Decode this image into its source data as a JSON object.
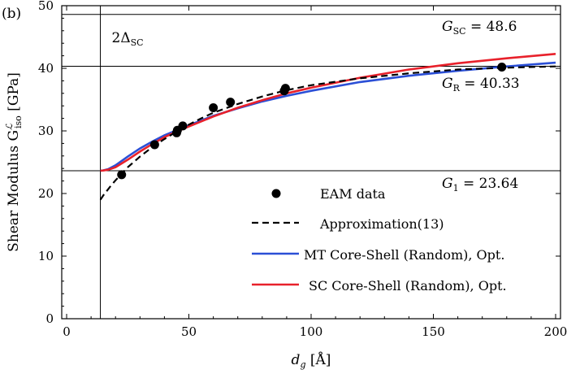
{
  "chart_data": {
    "type": "line",
    "panel_label": "(b)",
    "xlabel": {
      "main": "d",
      "sub": "g",
      "unit": " [Å]"
    },
    "ylabel": {
      "main": "Shear Modulus G",
      "sup": "ℒ",
      "sub": "iso",
      "unit": " [GPa]"
    },
    "xlim": [
      -2,
      202
    ],
    "ylim": [
      0,
      50
    ],
    "xticks": [
      0,
      50,
      100,
      150,
      200
    ],
    "yticks": [
      0,
      10,
      20,
      30,
      40,
      50
    ],
    "xtick_labels": [
      "0",
      "50",
      "100",
      "150",
      "200"
    ],
    "ytick_labels": [
      "0",
      "10",
      "20",
      "30",
      "40",
      "50"
    ],
    "reference_lines": {
      "vertical": {
        "x": 13.8,
        "label_main": "2Δ",
        "label_sub": "SC"
      },
      "horizontal": [
        {
          "y": 48.6,
          "label_main": "G",
          "label_sub": "SC",
          "label_value": " = 48.6"
        },
        {
          "y": 40.33,
          "label_main": "G",
          "label_sub": "R",
          "label_value": " = 40.33"
        },
        {
          "y": 23.64,
          "label_main": "G",
          "label_sub": "1",
          "label_value": " = 23.64"
        }
      ]
    },
    "series": [
      {
        "name": "EAM data",
        "kind": "scatter",
        "color": "#000000",
        "points": [
          [
            22.5,
            23.0
          ],
          [
            36,
            27.8
          ],
          [
            45,
            29.7
          ],
          [
            45.3,
            30.1
          ],
          [
            47.5,
            30.8
          ],
          [
            60,
            33.7
          ],
          [
            67,
            34.6
          ],
          [
            89,
            36.4
          ],
          [
            89.5,
            36.8
          ],
          [
            178,
            40.2
          ]
        ]
      },
      {
        "name": "Approximation(13)",
        "kind": "line",
        "dash": true,
        "color": "#000000",
        "points": [
          [
            13.8,
            19.0
          ],
          [
            15,
            19.7
          ],
          [
            18,
            21.2
          ],
          [
            20,
            22.1
          ],
          [
            25,
            24.2
          ],
          [
            30,
            25.9
          ],
          [
            35,
            27.4
          ],
          [
            40,
            28.7
          ],
          [
            45,
            29.9
          ],
          [
            50,
            31.0
          ],
          [
            55,
            32.0
          ],
          [
            60,
            32.9
          ],
          [
            70,
            34.3
          ],
          [
            80,
            35.5
          ],
          [
            90,
            36.5
          ],
          [
            100,
            37.3
          ],
          [
            120,
            38.4
          ],
          [
            140,
            39.2
          ],
          [
            160,
            39.8
          ],
          [
            180,
            40.1
          ],
          [
            200,
            40.3
          ]
        ]
      },
      {
        "name": "MT Core-Shell (Random), Opt.",
        "kind": "line",
        "color": "#2b4fd6",
        "points": [
          [
            13.8,
            23.64
          ],
          [
            15,
            23.7
          ],
          [
            17,
            23.9
          ],
          [
            20,
            24.5
          ],
          [
            25,
            25.9
          ],
          [
            30,
            27.2
          ],
          [
            35,
            28.3
          ],
          [
            40,
            29.3
          ],
          [
            45,
            30.1
          ],
          [
            50,
            30.9
          ],
          [
            60,
            32.4
          ],
          [
            70,
            33.6
          ],
          [
            80,
            34.7
          ],
          [
            90,
            35.6
          ],
          [
            100,
            36.4
          ],
          [
            120,
            37.8
          ],
          [
            140,
            38.8
          ],
          [
            160,
            39.6
          ],
          [
            180,
            40.3
          ],
          [
            200,
            40.9
          ]
        ]
      },
      {
        "name": "SC Core-Shell (Random), Opt.",
        "kind": "line",
        "color": "#e8212b",
        "points": [
          [
            13.8,
            23.64
          ],
          [
            15,
            23.67
          ],
          [
            17,
            23.8
          ],
          [
            20,
            24.2
          ],
          [
            25,
            25.4
          ],
          [
            30,
            26.7
          ],
          [
            35,
            27.9
          ],
          [
            40,
            29.0
          ],
          [
            45,
            29.9
          ],
          [
            50,
            30.7
          ],
          [
            60,
            32.3
          ],
          [
            70,
            33.7
          ],
          [
            80,
            34.9
          ],
          [
            90,
            36.0
          ],
          [
            100,
            36.9
          ],
          [
            120,
            38.5
          ],
          [
            140,
            39.8
          ],
          [
            160,
            40.8
          ],
          [
            180,
            41.6
          ],
          [
            200,
            42.3
          ]
        ]
      }
    ],
    "legend_position": "lower-right"
  }
}
